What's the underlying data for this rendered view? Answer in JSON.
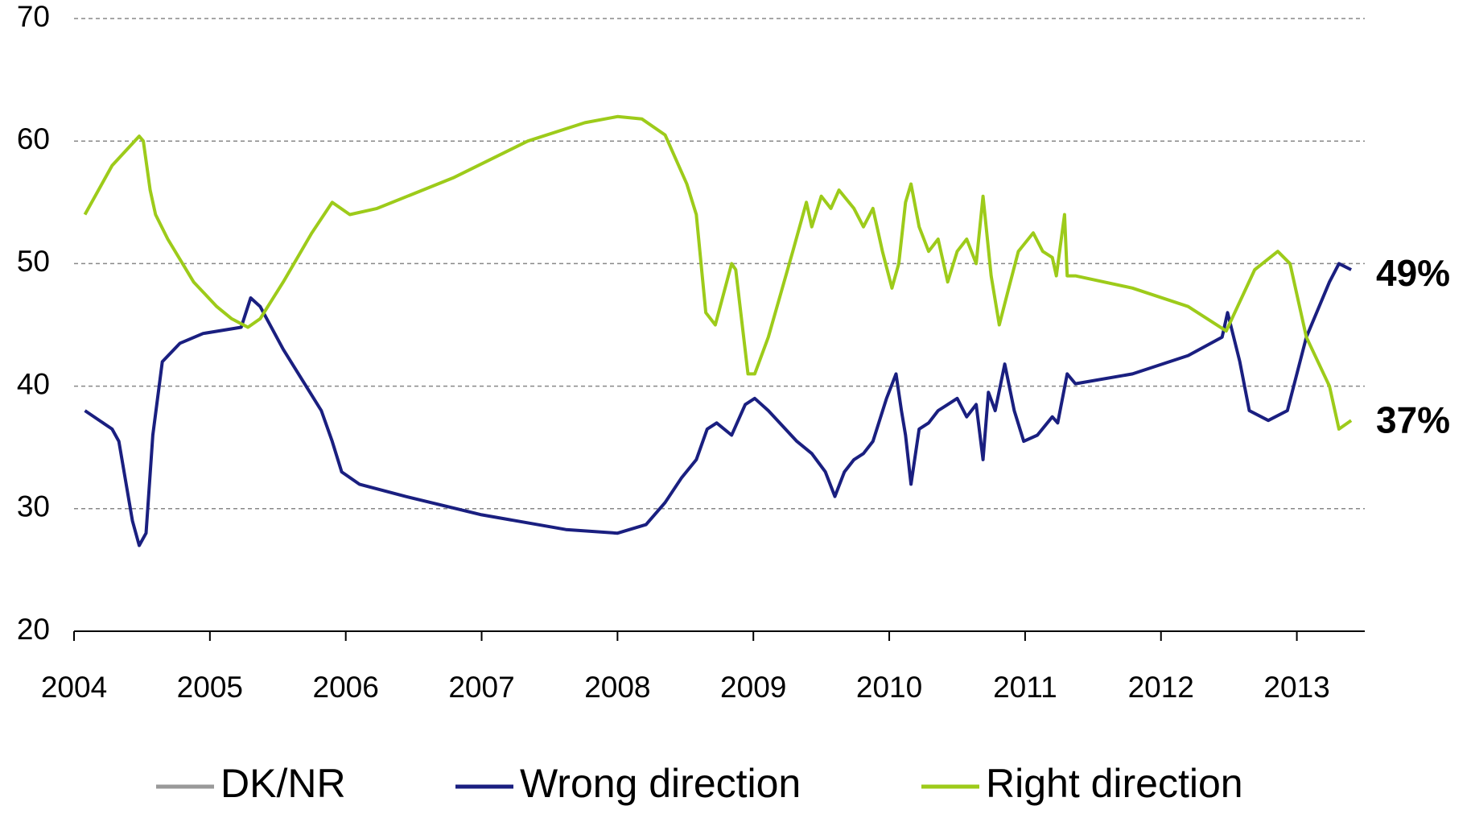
{
  "chart_data": {
    "type": "line",
    "xlim": [
      2004,
      2013.5
    ],
    "xticks": [
      2004,
      2005,
      2006,
      2007,
      2008,
      2009,
      2010,
      2011,
      2012,
      2013
    ],
    "ylim": [
      20,
      70
    ],
    "yticks": [
      20,
      30,
      40,
      50,
      60,
      70
    ],
    "grid": true,
    "legend": "bottom",
    "end_labels": [
      {
        "value": 49,
        "label": "49%"
      },
      {
        "value": 37,
        "label": "37%"
      }
    ],
    "series": [
      {
        "name": "DK/NR",
        "color": "#999999",
        "x": [],
        "values": []
      },
      {
        "name": "Wrong direction",
        "color": "#1a1f80",
        "x": [
          2004.08,
          2004.28,
          2004.33,
          2004.43,
          2004.48,
          2004.53,
          2004.58,
          2004.65,
          2004.78,
          2004.95,
          2005.23,
          2005.3,
          2005.37,
          2005.54,
          2005.82,
          2005.9,
          2005.97,
          2006.1,
          2006.44,
          2007.0,
          2007.62,
          2008.0,
          2008.21,
          2008.35,
          2008.47,
          2008.58,
          2008.66,
          2008.73,
          2008.84,
          2008.94,
          2009.01,
          2009.11,
          2009.32,
          2009.43,
          2009.53,
          2009.6,
          2009.67,
          2009.74,
          2009.81,
          2009.88,
          2009.98,
          2010.05,
          2010.09,
          2010.12,
          2010.16,
          2010.22,
          2010.29,
          2010.36,
          2010.43,
          2010.5,
          2010.57,
          2010.64,
          2010.69,
          2010.73,
          2010.78,
          2010.85,
          2010.92,
          2010.99,
          2011.09,
          2011.2,
          2011.24,
          2011.31,
          2011.37,
          2011.79,
          2012.2,
          2012.45,
          2012.49,
          2012.58,
          2012.65,
          2012.79,
          2012.93,
          2013.07,
          2013.24,
          2013.31,
          2013.4
        ],
        "values": [
          38,
          36.5,
          35.5,
          29,
          27,
          28,
          36,
          42,
          43.5,
          44.3,
          44.8,
          47.2,
          46.5,
          43,
          38,
          35.5,
          33,
          32,
          31,
          29.5,
          28.3,
          28,
          28.7,
          30.5,
          32.5,
          34,
          36.5,
          37,
          36,
          38.5,
          39,
          38,
          35.5,
          34.5,
          33,
          31,
          33,
          34,
          34.5,
          35.5,
          39,
          41,
          38,
          36,
          32,
          36.5,
          37,
          38,
          38.5,
          39,
          37.5,
          38.5,
          34,
          39.5,
          38,
          41.8,
          38,
          35.5,
          36,
          37.5,
          37,
          41,
          40.2,
          41,
          42.5,
          44,
          46,
          42,
          38,
          37.2,
          38,
          44,
          48.5,
          50,
          49.5
        ]
      },
      {
        "name": "Right direction",
        "color": "#9dcb1a",
        "x": [
          2004.08,
          2004.28,
          2004.48,
          2004.51,
          2004.56,
          2004.6,
          2004.69,
          2004.88,
          2005.05,
          2005.16,
          2005.28,
          2005.37,
          2005.54,
          2005.75,
          2005.9,
          2006.03,
          2006.23,
          2006.79,
          2007.34,
          2007.76,
          2008.0,
          2008.18,
          2008.35,
          2008.51,
          2008.58,
          2008.65,
          2008.72,
          2008.84,
          2008.87,
          2008.96,
          2009.01,
          2009.11,
          2009.29,
          2009.39,
          2009.43,
          2009.5,
          2009.57,
          2009.63,
          2009.74,
          2009.81,
          2009.88,
          2009.95,
          2010.02,
          2010.07,
          2010.12,
          2010.16,
          2010.22,
          2010.29,
          2010.36,
          2010.43,
          2010.5,
          2010.57,
          2010.64,
          2010.69,
          2010.75,
          2010.81,
          2010.88,
          2010.95,
          2011.06,
          2011.13,
          2011.2,
          2011.23,
          2011.29,
          2011.31,
          2011.37,
          2011.79,
          2012.2,
          2012.48,
          2012.69,
          2012.86,
          2012.95,
          2013.07,
          2013.24,
          2013.31,
          2013.4
        ],
        "values": [
          54,
          58,
          60.4,
          60,
          56,
          54,
          52,
          48.5,
          46.5,
          45.5,
          44.8,
          45.5,
          48.5,
          52.5,
          55,
          54,
          54.5,
          57,
          60,
          61.5,
          62,
          61.8,
          60.5,
          56.5,
          54,
          46,
          45,
          50,
          49.5,
          41,
          41,
          44,
          51,
          55,
          53,
          55.5,
          54.5,
          56,
          54.5,
          53,
          54.5,
          51,
          48,
          50,
          55,
          56.5,
          53,
          51,
          52,
          48.5,
          51,
          52,
          50,
          55.5,
          49,
          45,
          48,
          51,
          52.5,
          51,
          50.5,
          49,
          54,
          49,
          49,
          48,
          46.5,
          44.5,
          49.5,
          51,
          50,
          44,
          40,
          36.5,
          37.2
        ]
      }
    ]
  }
}
